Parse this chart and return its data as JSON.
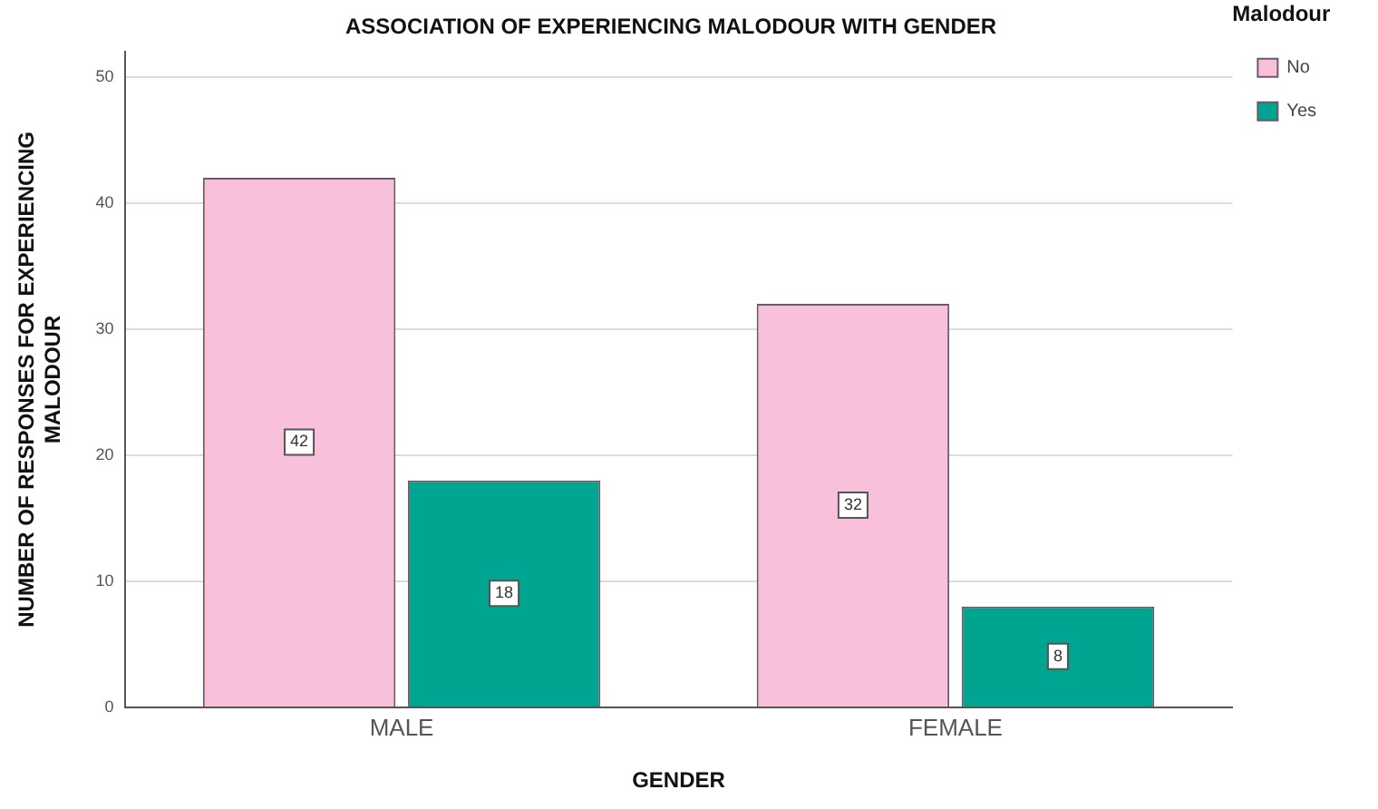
{
  "chart_data": {
    "type": "bar",
    "title": "ASSOCIATION OF EXPERIENCING MALODOUR WITH GENDER",
    "xlabel": "GENDER",
    "ylabel": "NUMBER OF RESPONSES FOR EXPERIENCING\nMALODOUR",
    "legend_title": "Malodour",
    "categories": [
      "MALE",
      "FEMALE"
    ],
    "series": [
      {
        "name": "No",
        "color": "#f9c0dc",
        "values": [
          42,
          32
        ]
      },
      {
        "name": "Yes",
        "color": "#00a591",
        "values": [
          18,
          8
        ]
      }
    ],
    "ylim": [
      0,
      52
    ],
    "yticks": [
      0,
      10,
      20,
      30,
      40,
      50
    ],
    "grid": "y",
    "legend": "right",
    "data_labels": true
  }
}
